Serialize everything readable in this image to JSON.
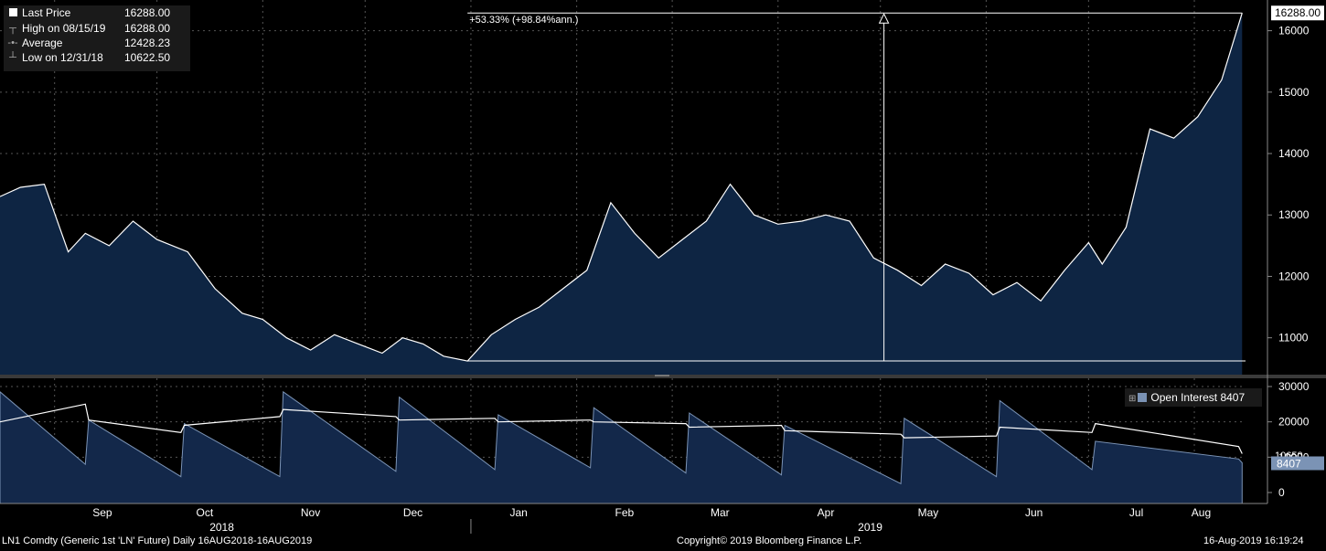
{
  "legend": {
    "items": [
      {
        "icon": "square-icon",
        "label": "Last Price",
        "value": "16288.00"
      },
      {
        "icon": "high-marker-icon",
        "label": "High on 08/15/19",
        "value": "16288.00"
      },
      {
        "icon": "average-line-icon",
        "label": "Average",
        "value": "12428.23"
      },
      {
        "icon": "low-marker-icon",
        "label": "Low on 12/31/18",
        "value": "10622.50"
      }
    ]
  },
  "annotation": "+53.33% (+98.84%ann.)",
  "price_axis": {
    "ticks": [
      "11000",
      "12000",
      "13000",
      "14000",
      "15000",
      "16000"
    ],
    "last_label": "16288.00"
  },
  "oi_axis": {
    "ticks": [
      "0",
      "10000",
      "20000",
      "30000"
    ],
    "overlap_label": "10650",
    "last_label": "8407"
  },
  "oi_legend": {
    "label": "Open Interest",
    "value": "8407"
  },
  "months": [
    "Sep",
    "Oct",
    "Nov",
    "Dec",
    "Jan",
    "Feb",
    "Mar",
    "Apr",
    "May",
    "Jun",
    "Jul",
    "Aug"
  ],
  "years": [
    "2018",
    "2019"
  ],
  "footer": {
    "left": "LN1 Comdty (Generic 1st 'LN' Future)  Daily 16AUG2018-16AUG2019",
    "center": "Copyright© 2019 Bloomberg Finance L.P.",
    "right": "16-Aug-2019 16:19:24"
  },
  "colors": {
    "area": "#0e2543",
    "oi_area": "#13284a",
    "line": "#ffffff",
    "oi_fill": "#7b93b5"
  },
  "chart_data": [
    {
      "type": "area",
      "title": "LN1 Comdty (Generic 1st 'LN' Future)",
      "series": [
        {
          "name": "Last Price",
          "x": [
            "2018-08-16",
            "2018-08-22",
            "2018-08-29",
            "2018-09-05",
            "2018-09-10",
            "2018-09-17",
            "2018-09-24",
            "2018-10-01",
            "2018-10-10",
            "2018-10-18",
            "2018-10-26",
            "2018-11-01",
            "2018-11-08",
            "2018-11-15",
            "2018-11-22",
            "2018-11-29",
            "2018-12-06",
            "2018-12-12",
            "2018-12-18",
            "2018-12-24",
            "2018-12-31",
            "2019-01-07",
            "2019-01-14",
            "2019-01-21",
            "2019-01-28",
            "2019-02-04",
            "2019-02-11",
            "2019-02-18",
            "2019-02-25",
            "2019-03-04",
            "2019-03-11",
            "2019-03-18",
            "2019-03-25",
            "2019-04-01",
            "2019-04-08",
            "2019-04-15",
            "2019-04-22",
            "2019-04-29",
            "2019-05-06",
            "2019-05-13",
            "2019-05-20",
            "2019-05-27",
            "2019-06-03",
            "2019-06-10",
            "2019-06-17",
            "2019-06-24",
            "2019-07-01",
            "2019-07-05",
            "2019-07-12",
            "2019-07-19",
            "2019-07-26",
            "2019-08-02",
            "2019-08-09",
            "2019-08-15"
          ],
          "values": [
            13300,
            13450,
            13500,
            12400,
            12700,
            12500,
            12900,
            12600,
            12400,
            11800,
            11400,
            11300,
            11000,
            10800,
            11050,
            10900,
            10750,
            11000,
            10900,
            10700,
            10622,
            11050,
            11300,
            11500,
            11800,
            12100,
            13200,
            12700,
            12300,
            12600,
            12900,
            13500,
            13000,
            12850,
            12900,
            13000,
            12900,
            12300,
            12100,
            11850,
            12200,
            12050,
            11700,
            11900,
            11600,
            12100,
            12550,
            12200,
            12800,
            14400,
            14250,
            14600,
            15200,
            16288
          ],
          "last": 16288.0,
          "high": 16288.0,
          "high_date": "08/15/19",
          "average": 12428.23,
          "low": 10622.5,
          "low_date": "12/31/18"
        }
      ],
      "annotation": "+53.33% (+98.84%ann.)",
      "ylim": [
        10400,
        16500
      ],
      "yticks": [
        11000,
        12000,
        13000,
        14000,
        15000,
        16000
      ],
      "grid": true
    },
    {
      "type": "area",
      "series": [
        {
          "name": "Open Interest",
          "x": [
            "2018-08-16",
            "2018-09-10",
            "2018-09-11",
            "2018-10-08",
            "2018-10-09",
            "2018-11-06",
            "2018-11-07",
            "2018-12-10",
            "2018-12-11",
            "2019-01-08",
            "2019-01-09",
            "2019-02-05",
            "2019-02-06",
            "2019-03-05",
            "2019-03-06",
            "2019-04-02",
            "2019-04-03",
            "2019-05-07",
            "2019-05-08",
            "2019-06-04",
            "2019-06-05",
            "2019-07-02",
            "2019-07-03",
            "2019-08-14",
            "2019-08-15"
          ],
          "values": [
            28500,
            8000,
            20500,
            4500,
            19500,
            4500,
            28500,
            6000,
            27000,
            6500,
            22000,
            7000,
            24000,
            5500,
            22500,
            5000,
            19000,
            2500,
            21000,
            4500,
            26000,
            6500,
            14500,
            9500,
            8407
          ]
        },
        {
          "name": "Average",
          "values": [
            20000,
            25000,
            20500,
            17000,
            19000,
            21500,
            23500,
            21500,
            20500,
            21000,
            20000,
            20500,
            20000,
            19500,
            18500,
            19000,
            17500,
            16500,
            15500,
            16000,
            18500,
            17000,
            19500,
            13000,
            11000
          ]
        }
      ],
      "ylim": [
        0,
        31000
      ],
      "yticks": [
        0,
        10000,
        20000,
        30000
      ],
      "grid": true
    }
  ]
}
